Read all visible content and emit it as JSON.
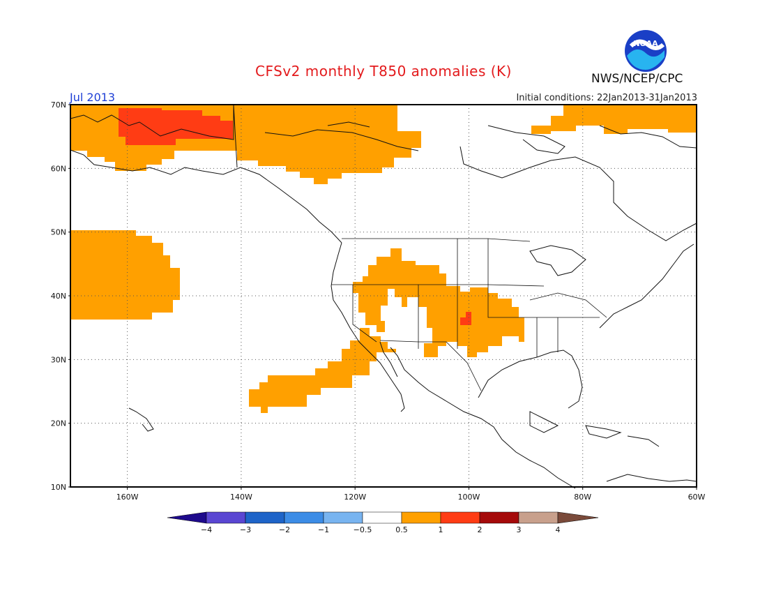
{
  "header": {
    "title": "CFSv2 monthly T850 anomalies (K)",
    "month": "Jul 2013",
    "initial_conditions": "Initial conditions: 22Jan2013-31Jan2013",
    "agency": "NWS/NCEP/CPC",
    "logo_text": "NOAA"
  },
  "map": {
    "lon_range": [
      -170,
      -60
    ],
    "lat_range": [
      10,
      70
    ],
    "lat_labels": [
      "70N",
      "60N",
      "50N",
      "40N",
      "30N",
      "20N",
      "10N"
    ],
    "lon_labels": [
      "160W",
      "140W",
      "120W",
      "100W",
      "80W",
      "60W"
    ],
    "grid": "dotted"
  },
  "colorbar": {
    "labels": [
      "-4",
      "-3",
      "-2",
      "-1",
      "-0.5",
      "0.5",
      "1",
      "2",
      "3",
      "4"
    ],
    "colors": [
      "#1e0a8c",
      "#5a46d2",
      "#1e64c8",
      "#3c8ce6",
      "#78b4f0",
      "#ffffff",
      "#ffa000",
      "#ff3c14",
      "#a50a0a",
      "#c8a08c",
      "#7a4a3a"
    ]
  },
  "anomaly_colors": {
    "0.5-1": "#ffa000",
    "1-2": "#ff3c14"
  }
}
